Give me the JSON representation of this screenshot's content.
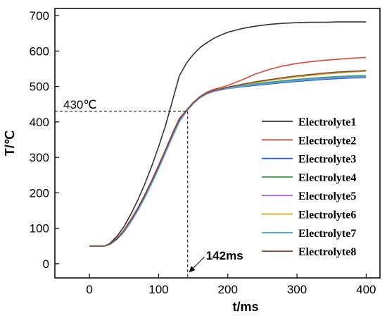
{
  "chart_data": {
    "type": "line",
    "xlabel": "t/ms",
    "ylabel": "T/℃",
    "xlim": [
      -50,
      420
    ],
    "ylim": [
      -40,
      720
    ],
    "xticks": [
      0,
      100,
      200,
      300,
      400
    ],
    "yticks": [
      0,
      100,
      200,
      300,
      400,
      500,
      600,
      700
    ],
    "grid": false,
    "legend_position": "bottom-right",
    "annotations": [
      {
        "text": "430℃",
        "kind": "horizontal-dashed",
        "y": 430
      },
      {
        "text": "142ms",
        "kind": "vertical-dashed",
        "x": 142
      }
    ],
    "series": [
      {
        "name": "Electrolyte1",
        "color": "#333333",
        "x": [
          0,
          22,
          30,
          40,
          50,
          60,
          70,
          80,
          90,
          100,
          110,
          120,
          130,
          140,
          150,
          160,
          170,
          180,
          190,
          200,
          220,
          240,
          260,
          280,
          300,
          320,
          340,
          360,
          380,
          400
        ],
        "y": [
          50,
          50,
          58,
          78,
          105,
          140,
          180,
          225,
          275,
          330,
          390,
          460,
          530,
          565,
          590,
          610,
          624,
          636,
          645,
          653,
          663,
          670,
          675,
          678,
          680,
          681,
          681,
          682,
          682,
          682
        ]
      },
      {
        "name": "Electrolyte2",
        "color": "#d94a3a",
        "x": [
          0,
          22,
          30,
          40,
          50,
          60,
          70,
          80,
          90,
          100,
          110,
          120,
          130,
          140,
          150,
          160,
          170,
          180,
          190,
          200,
          220,
          240,
          260,
          280,
          300,
          320,
          340,
          360,
          380,
          400
        ],
        "y": [
          50,
          50,
          57,
          72,
          95,
          125,
          158,
          195,
          235,
          278,
          322,
          368,
          410,
          432,
          455,
          472,
          484,
          492,
          497,
          503,
          518,
          535,
          548,
          558,
          565,
          570,
          574,
          577,
          580,
          582
        ]
      },
      {
        "name": "Electrolyte3",
        "color": "#2a5bd7",
        "x": [
          0,
          22,
          30,
          40,
          50,
          60,
          70,
          80,
          90,
          100,
          110,
          120,
          130,
          140,
          150,
          160,
          170,
          180,
          190,
          200,
          220,
          240,
          260,
          280,
          300,
          320,
          340,
          360,
          380,
          400
        ],
        "y": [
          50,
          50,
          56,
          70,
          92,
          120,
          152,
          188,
          228,
          270,
          315,
          360,
          402,
          430,
          452,
          469,
          480,
          487,
          491,
          494,
          499,
          503,
          507,
          511,
          514,
          517,
          520,
          522,
          524,
          525
        ]
      },
      {
        "name": "Electrolyte4",
        "color": "#3c9a4a",
        "x": [
          0,
          22,
          30,
          40,
          50,
          60,
          70,
          80,
          90,
          100,
          110,
          120,
          130,
          140,
          150,
          160,
          170,
          180,
          190,
          200,
          220,
          240,
          260,
          280,
          300,
          320,
          340,
          360,
          380,
          400
        ],
        "y": [
          50,
          50,
          56,
          70,
          92,
          121,
          153,
          190,
          230,
          272,
          317,
          362,
          404,
          431,
          453,
          470,
          481,
          488,
          492,
          496,
          502,
          507,
          512,
          516,
          520,
          523,
          526,
          528,
          530,
          531
        ]
      },
      {
        "name": "Electrolyte5",
        "color": "#a86ee0",
        "x": [
          0,
          22,
          30,
          40,
          50,
          60,
          70,
          80,
          90,
          100,
          110,
          120,
          130,
          140,
          150,
          160,
          170,
          180,
          190,
          200,
          220,
          240,
          260,
          280,
          300,
          320,
          340,
          360,
          380,
          400
        ],
        "y": [
          50,
          50,
          55,
          69,
          90,
          118,
          150,
          186,
          226,
          268,
          313,
          358,
          400,
          429,
          451,
          468,
          479,
          486,
          490,
          494,
          500,
          505,
          509,
          513,
          517,
          520,
          523,
          525,
          527,
          528
        ]
      },
      {
        "name": "Electrolyte6",
        "color": "#d1a21a",
        "x": [
          0,
          22,
          30,
          40,
          50,
          60,
          70,
          80,
          90,
          100,
          110,
          120,
          130,
          140,
          150,
          160,
          170,
          180,
          190,
          200,
          220,
          240,
          260,
          280,
          300,
          320,
          340,
          360,
          380,
          400
        ],
        "y": [
          50,
          50,
          56,
          71,
          93,
          122,
          154,
          191,
          231,
          273,
          318,
          363,
          405,
          431,
          454,
          471,
          482,
          489,
          494,
          498,
          505,
          511,
          517,
          522,
          527,
          531,
          535,
          538,
          541,
          543
        ]
      },
      {
        "name": "Electrolyte7",
        "color": "#4aa8e8",
        "x": [
          0,
          22,
          30,
          40,
          50,
          60,
          70,
          80,
          90,
          100,
          110,
          120,
          130,
          140,
          150,
          160,
          170,
          180,
          190,
          200,
          220,
          240,
          260,
          280,
          300,
          320,
          340,
          360,
          380,
          400
        ],
        "y": [
          50,
          50,
          55,
          69,
          91,
          119,
          151,
          187,
          227,
          269,
          314,
          359,
          401,
          430,
          452,
          469,
          480,
          487,
          491,
          495,
          500,
          505,
          509,
          513,
          516,
          519,
          522,
          524,
          526,
          527
        ]
      },
      {
        "name": "Electrolyte8",
        "color": "#7a4a3a",
        "x": [
          0,
          22,
          30,
          40,
          50,
          60,
          70,
          80,
          90,
          100,
          110,
          120,
          130,
          140,
          150,
          160,
          170,
          180,
          190,
          200,
          220,
          240,
          260,
          280,
          300,
          320,
          340,
          360,
          380,
          400
        ],
        "y": [
          50,
          50,
          56,
          71,
          94,
          123,
          156,
          193,
          233,
          275,
          320,
          365,
          407,
          432,
          454,
          471,
          482,
          489,
          493,
          498,
          506,
          513,
          519,
          525,
          530,
          534,
          538,
          541,
          543,
          545
        ]
      }
    ]
  }
}
